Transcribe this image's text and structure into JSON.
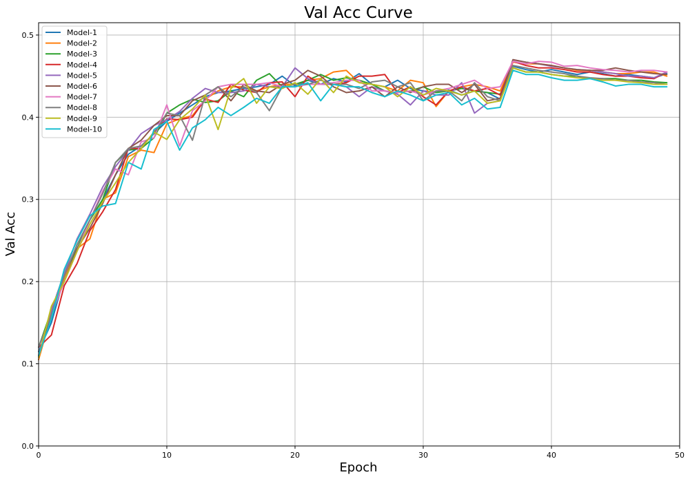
{
  "chart_data": {
    "type": "line",
    "title": "Val Acc Curve",
    "xlabel": "Epoch",
    "ylabel": "Val Acc",
    "xlim": [
      0,
      50
    ],
    "ylim": [
      0.0,
      0.515
    ],
    "xticks": [
      0,
      10,
      20,
      30,
      40,
      50
    ],
    "yticks": [
      0.0,
      0.1,
      0.2,
      0.3,
      0.4,
      0.5
    ],
    "xtick_labels": [
      "0",
      "10",
      "20",
      "30",
      "40",
      "50"
    ],
    "ytick_labels": [
      "0.0",
      "0.1",
      "0.2",
      "0.3",
      "0.4",
      "0.5"
    ],
    "grid": true,
    "legend_position": "top-left",
    "x": [
      0,
      1,
      2,
      3,
      4,
      5,
      6,
      7,
      8,
      9,
      10,
      11,
      12,
      13,
      14,
      15,
      16,
      17,
      18,
      19,
      20,
      21,
      22,
      23,
      24,
      25,
      26,
      27,
      28,
      29,
      30,
      31,
      32,
      33,
      34,
      35,
      36,
      37,
      38,
      39,
      40,
      41,
      42,
      43,
      44,
      45,
      46,
      47,
      48,
      49
    ],
    "series": [
      {
        "name": "Model-1",
        "color": "#1f77b4",
        "values": [
          0.115,
          0.15,
          0.205,
          0.245,
          0.275,
          0.3,
          0.33,
          0.355,
          0.365,
          0.38,
          0.395,
          0.405,
          0.415,
          0.425,
          0.43,
          0.432,
          0.435,
          0.437,
          0.44,
          0.45,
          0.438,
          0.445,
          0.44,
          0.447,
          0.443,
          0.453,
          0.44,
          0.437,
          0.445,
          0.435,
          0.432,
          0.43,
          0.433,
          0.427,
          0.432,
          0.43,
          0.422,
          0.462,
          0.458,
          0.455,
          0.458,
          0.455,
          0.452,
          0.455,
          0.453,
          0.45,
          0.452,
          0.45,
          0.448,
          0.453
        ]
      },
      {
        "name": "Model-2",
        "color": "#ff7f0e",
        "values": [
          0.105,
          0.16,
          0.205,
          0.24,
          0.252,
          0.3,
          0.308,
          0.352,
          0.36,
          0.357,
          0.392,
          0.398,
          0.402,
          0.422,
          0.432,
          0.437,
          0.437,
          0.432,
          0.437,
          0.44,
          0.44,
          0.445,
          0.447,
          0.455,
          0.457,
          0.442,
          0.44,
          0.437,
          0.432,
          0.445,
          0.442,
          0.413,
          0.432,
          0.437,
          0.44,
          0.437,
          0.432,
          0.467,
          0.465,
          0.465,
          0.463,
          0.46,
          0.457,
          0.457,
          0.455,
          0.453,
          0.453,
          0.455,
          0.455,
          0.45
        ]
      },
      {
        "name": "Model-3",
        "color": "#2ca02c",
        "values": [
          0.12,
          0.165,
          0.21,
          0.24,
          0.275,
          0.3,
          0.345,
          0.36,
          0.362,
          0.375,
          0.405,
          0.415,
          0.422,
          0.418,
          0.42,
          0.432,
          0.425,
          0.445,
          0.453,
          0.437,
          0.44,
          0.445,
          0.452,
          0.445,
          0.448,
          0.445,
          0.44,
          0.432,
          0.43,
          0.432,
          0.437,
          0.43,
          0.432,
          0.435,
          0.432,
          0.43,
          0.428,
          0.46,
          0.455,
          0.455,
          0.452,
          0.45,
          0.45,
          0.447,
          0.447,
          0.447,
          0.445,
          0.445,
          0.443,
          0.442
        ]
      },
      {
        "name": "Model-4",
        "color": "#d62728",
        "values": [
          0.12,
          0.135,
          0.195,
          0.222,
          0.262,
          0.285,
          0.312,
          0.362,
          0.362,
          0.382,
          0.398,
          0.397,
          0.4,
          0.422,
          0.418,
          0.44,
          0.433,
          0.43,
          0.442,
          0.443,
          0.425,
          0.45,
          0.44,
          0.44,
          0.442,
          0.45,
          0.45,
          0.452,
          0.43,
          0.437,
          0.425,
          0.415,
          0.432,
          0.437,
          0.432,
          0.435,
          0.427,
          0.468,
          0.463,
          0.46,
          0.46,
          0.458,
          0.455,
          0.455,
          0.452,
          0.45,
          0.45,
          0.448,
          0.447,
          0.455
        ]
      },
      {
        "name": "Model-5",
        "color": "#9467bd",
        "values": [
          0.11,
          0.165,
          0.21,
          0.252,
          0.282,
          0.315,
          0.34,
          0.36,
          0.38,
          0.39,
          0.397,
          0.407,
          0.423,
          0.435,
          0.43,
          0.43,
          0.432,
          0.44,
          0.437,
          0.437,
          0.46,
          0.447,
          0.44,
          0.44,
          0.437,
          0.425,
          0.437,
          0.432,
          0.428,
          0.415,
          0.432,
          0.427,
          0.427,
          0.442,
          0.405,
          0.417,
          0.42,
          0.47,
          0.467,
          0.465,
          0.462,
          0.46,
          0.458,
          0.457,
          0.455,
          0.453,
          0.45,
          0.45,
          0.448,
          0.455
        ]
      },
      {
        "name": "Model-6",
        "color": "#8c564b",
        "values": [
          0.11,
          0.16,
          0.2,
          0.24,
          0.265,
          0.295,
          0.33,
          0.362,
          0.372,
          0.39,
          0.402,
          0.402,
          0.42,
          0.427,
          0.437,
          0.42,
          0.44,
          0.432,
          0.43,
          0.44,
          0.445,
          0.457,
          0.45,
          0.437,
          0.43,
          0.432,
          0.437,
          0.425,
          0.437,
          0.43,
          0.437,
          0.44,
          0.44,
          0.43,
          0.44,
          0.42,
          0.423,
          0.47,
          0.467,
          0.465,
          0.463,
          0.46,
          0.458,
          0.457,
          0.457,
          0.46,
          0.457,
          0.455,
          0.453,
          0.452
        ]
      },
      {
        "name": "Model-7",
        "color": "#e377c2",
        "values": [
          0.12,
          0.16,
          0.2,
          0.237,
          0.275,
          0.31,
          0.337,
          0.33,
          0.37,
          0.375,
          0.415,
          0.365,
          0.408,
          0.42,
          0.437,
          0.44,
          0.44,
          0.44,
          0.442,
          0.437,
          0.437,
          0.44,
          0.44,
          0.442,
          0.445,
          0.445,
          0.432,
          0.432,
          0.43,
          0.432,
          0.427,
          0.432,
          0.435,
          0.44,
          0.445,
          0.435,
          0.437,
          0.468,
          0.465,
          0.468,
          0.467,
          0.462,
          0.463,
          0.46,
          0.458,
          0.457,
          0.455,
          0.457,
          0.457,
          0.455
        ]
      },
      {
        "name": "Model-8",
        "color": "#7f7f7f",
        "values": [
          0.12,
          0.16,
          0.207,
          0.245,
          0.275,
          0.307,
          0.345,
          0.362,
          0.365,
          0.38,
          0.405,
          0.402,
          0.372,
          0.427,
          0.437,
          0.425,
          0.437,
          0.43,
          0.408,
          0.437,
          0.44,
          0.44,
          0.445,
          0.44,
          0.44,
          0.435,
          0.443,
          0.445,
          0.437,
          0.442,
          0.42,
          0.432,
          0.432,
          0.42,
          0.442,
          0.425,
          0.42,
          0.463,
          0.46,
          0.457,
          0.455,
          0.453,
          0.45,
          0.448,
          0.447,
          0.445,
          0.445,
          0.443,
          0.442,
          0.44
        ]
      },
      {
        "name": "Model-9",
        "color": "#bcbd22",
        "values": [
          0.108,
          0.17,
          0.2,
          0.237,
          0.27,
          0.297,
          0.32,
          0.345,
          0.362,
          0.382,
          0.373,
          0.397,
          0.41,
          0.427,
          0.385,
          0.435,
          0.447,
          0.417,
          0.437,
          0.435,
          0.442,
          0.428,
          0.447,
          0.43,
          0.45,
          0.442,
          0.44,
          0.437,
          0.425,
          0.437,
          0.427,
          0.435,
          0.432,
          0.427,
          0.432,
          0.417,
          0.42,
          0.46,
          0.455,
          0.455,
          0.452,
          0.45,
          0.448,
          0.447,
          0.445,
          0.445,
          0.443,
          0.442,
          0.44,
          0.44
        ]
      },
      {
        "name": "Model-10",
        "color": "#17becf",
        "values": [
          0.11,
          0.155,
          0.215,
          0.25,
          0.28,
          0.292,
          0.295,
          0.345,
          0.337,
          0.385,
          0.395,
          0.36,
          0.387,
          0.397,
          0.412,
          0.402,
          0.412,
          0.423,
          0.417,
          0.437,
          0.437,
          0.442,
          0.42,
          0.44,
          0.437,
          0.437,
          0.43,
          0.425,
          0.432,
          0.427,
          0.42,
          0.427,
          0.43,
          0.415,
          0.423,
          0.41,
          0.412,
          0.457,
          0.452,
          0.452,
          0.448,
          0.445,
          0.445,
          0.447,
          0.443,
          0.438,
          0.44,
          0.44,
          0.437,
          0.437
        ]
      }
    ]
  }
}
